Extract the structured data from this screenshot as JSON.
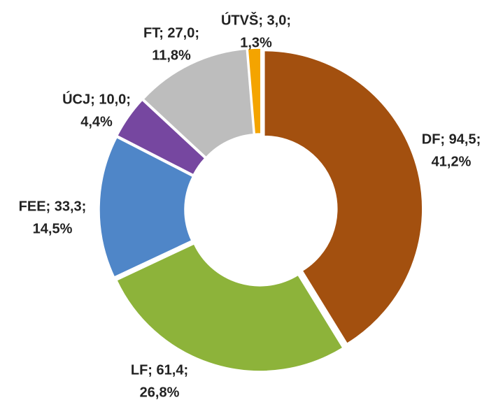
{
  "chart_data": {
    "type": "donut",
    "categories": [
      "DF",
      "LF",
      "FEE",
      "ÚCJ",
      "FT",
      "ÚTVŠ"
    ],
    "values": [
      94.5,
      61.4,
      33.3,
      10.0,
      27.0,
      3.0
    ],
    "value_labels": [
      "DF; 94,5;",
      "LF; 61,4;",
      "FEE; 33,3;",
      "ÚCJ; 10,0;",
      "FT; 27,0;",
      "ÚTVŠ; 3,0;"
    ],
    "percents": [
      41.2,
      26.8,
      14.5,
      4.4,
      11.8,
      1.3
    ],
    "percent_labels": [
      "41,2%",
      "26,8%",
      "14,5%",
      "4,4%",
      "11,8%",
      "1,3%"
    ],
    "colors": [
      "#a3500f",
      "#8db33a",
      "#4f86c8",
      "#7647a0",
      "#bdbdbd",
      "#f4a400"
    ]
  }
}
